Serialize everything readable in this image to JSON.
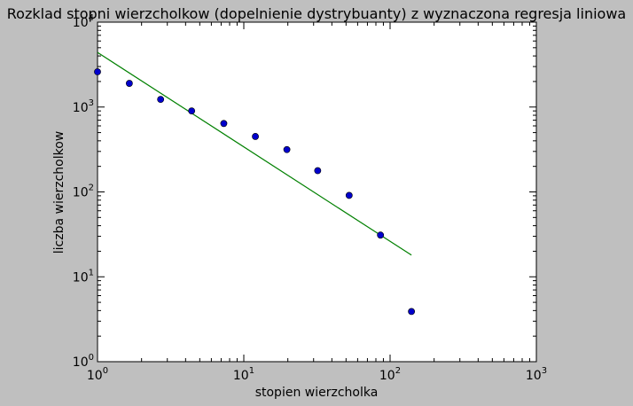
{
  "chart_data": {
    "type": "scatter",
    "title": "Rozklad stopni wierzcholkow (dopelnienie dystrybuanty) z wyznaczona regresja liniowa",
    "xlabel": "stopien wierzcholka",
    "ylabel": "liczba wierzcholkow",
    "x_scale": "log",
    "y_scale": "log",
    "xlim": [
      1,
      1000
    ],
    "ylim": [
      1,
      10000
    ],
    "x_ticks": [
      {
        "value": 1,
        "base": "10",
        "exp": "0"
      },
      {
        "value": 10,
        "base": "10",
        "exp": "1"
      },
      {
        "value": 100,
        "base": "10",
        "exp": "2"
      },
      {
        "value": 1000,
        "base": "10",
        "exp": "3"
      }
    ],
    "y_ticks": [
      {
        "value": 1,
        "base": "10",
        "exp": "0"
      },
      {
        "value": 10,
        "base": "10",
        "exp": "1"
      },
      {
        "value": 100,
        "base": "10",
        "exp": "2"
      },
      {
        "value": 1000,
        "base": "10",
        "exp": "3"
      },
      {
        "value": 10000,
        "base": "10",
        "exp": "4"
      }
    ],
    "grid": false,
    "series": [
      {
        "kind": "points",
        "color": "#0000cc",
        "x": [
          1.0,
          1.65,
          2.7,
          4.4,
          7.3,
          12.0,
          19.7,
          32.0,
          52.5,
          86.0,
          140.0
        ],
        "y": [
          2600,
          1900,
          1230,
          900,
          640,
          450,
          315,
          178,
          91,
          31,
          3.9
        ]
      },
      {
        "kind": "line",
        "color": "#008000",
        "x": [
          1.0,
          140.0
        ],
        "y": [
          4400,
          18
        ]
      }
    ]
  }
}
